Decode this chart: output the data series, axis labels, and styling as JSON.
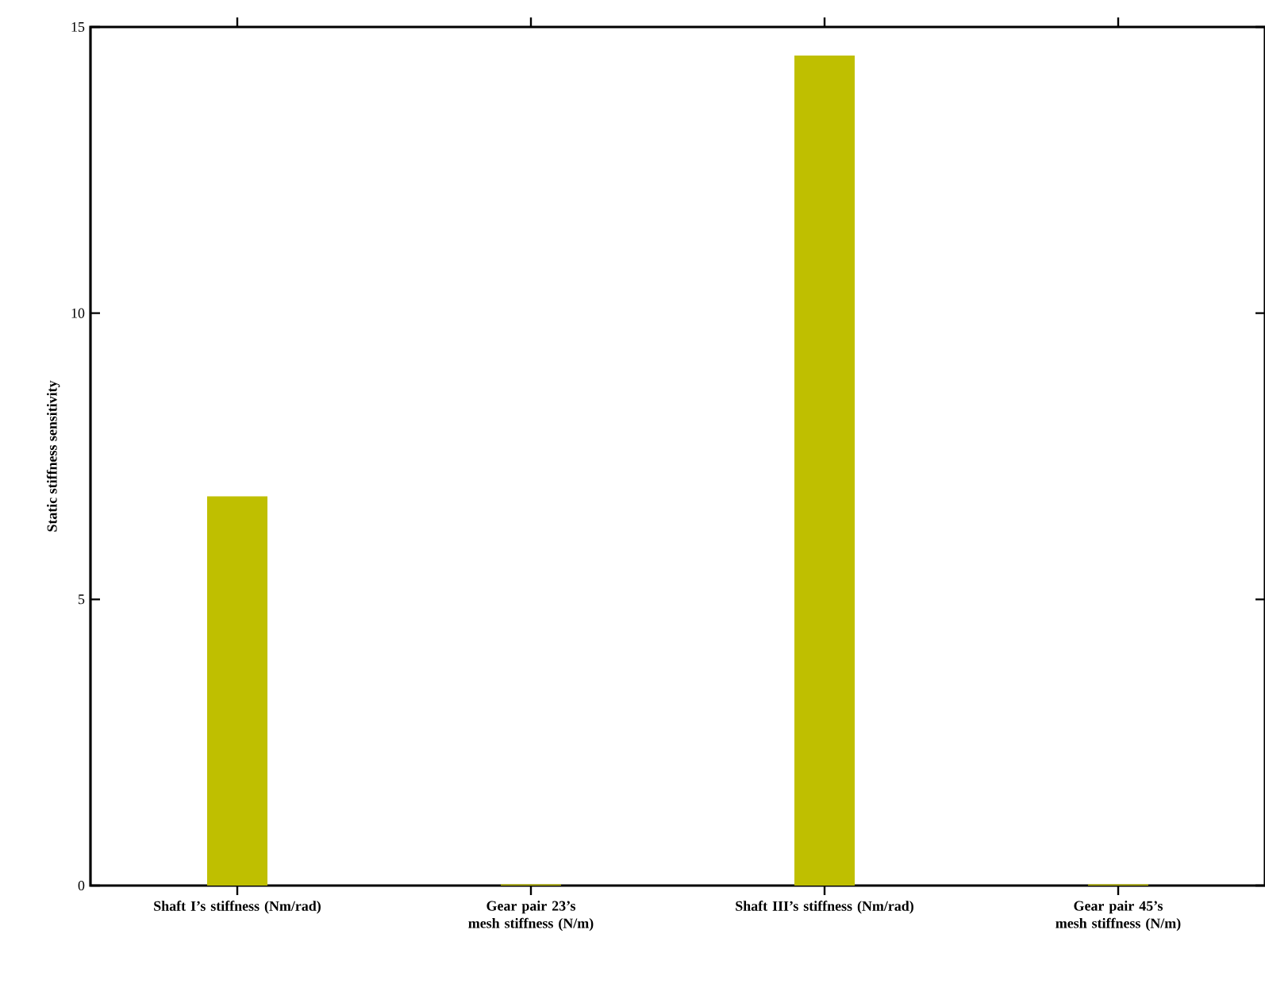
{
  "chart_data": {
    "type": "bar",
    "ylabel": "Static stiffness sensitivity",
    "categories": [
      "Shaft I’s stiffness (Nm/rad)",
      "Gear pair 23’s mesh stiffness (N/m)",
      "Shaft III’s stiffness (Nm/rad)",
      "Gear pair 45’s mesh stiffness (N/m)"
    ],
    "values": [
      6.8,
      0.02,
      14.5,
      0.02
    ],
    "color": "#bfbf00",
    "ylim": [
      0,
      15
    ],
    "yticks": [
      0,
      5,
      10,
      15
    ],
    "grid": false
  }
}
